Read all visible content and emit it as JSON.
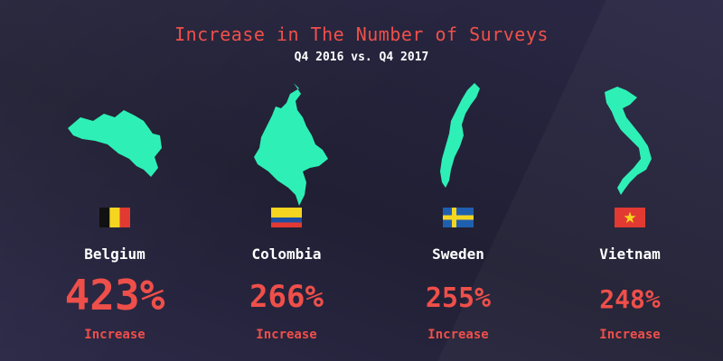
{
  "header": {
    "title": "Increase in The Number of Surveys",
    "subtitle": "Q4 2016 vs. Q4 2017"
  },
  "colors": {
    "map_fill": "#2ef0b6",
    "title": "#f0504a",
    "percent": "#ef4f4a",
    "text": "#ffffff",
    "background": "#242238"
  },
  "countries": [
    {
      "name": "Belgium",
      "percent": "423%",
      "label": "Increase",
      "map_icon": "belgium-map-icon",
      "flag_icon": "belgium-flag-icon"
    },
    {
      "name": "Colombia",
      "percent": "266%",
      "label": "Increase",
      "map_icon": "colombia-map-icon",
      "flag_icon": "colombia-flag-icon"
    },
    {
      "name": "Sweden",
      "percent": "255%",
      "label": "Increase",
      "map_icon": "sweden-map-icon",
      "flag_icon": "sweden-flag-icon"
    },
    {
      "name": "Vietnam",
      "percent": "248%",
      "label": "Increase",
      "map_icon": "vietnam-map-icon",
      "flag_icon": "vietnam-flag-icon"
    }
  ]
}
